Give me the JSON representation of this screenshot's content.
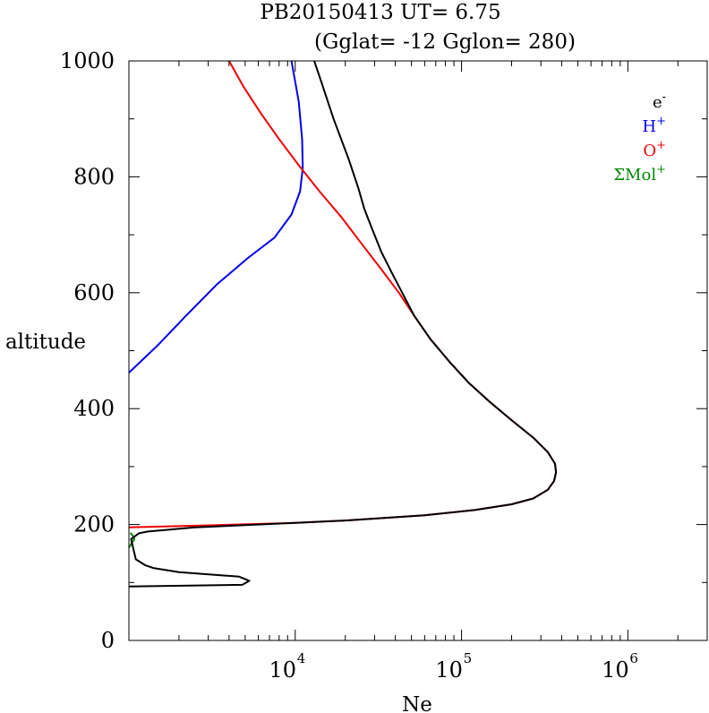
{
  "chart_data": {
    "type": "line",
    "title": "PB20150413   UT=  6.75",
    "subtitle": "(Gglat= -12   Gglon=  280)",
    "xlabel": "Ne",
    "ylabel": "altitude",
    "xscale": "log",
    "xlim": [
      1000,
      3000000
    ],
    "ylim": [
      0,
      1000
    ],
    "grid": false,
    "legend_position": "top-right",
    "x_tick_labels": [
      {
        "base": "10",
        "exp": "4",
        "value": 10000
      },
      {
        "base": "10",
        "exp": "5",
        "value": 100000
      },
      {
        "base": "10",
        "exp": "6",
        "value": 1000000
      }
    ],
    "y_tick_labels": [
      "0",
      "200",
      "400",
      "600",
      "800",
      "1000"
    ],
    "series": [
      {
        "name": "e",
        "name_sup": "-",
        "color": "#000000",
        "x": [
          1000,
          4800,
          5300,
          4600,
          2000,
          1400,
          1250,
          1100,
          1030,
          1150,
          1300,
          2500,
          10000,
          20000,
          60000,
          120000,
          200000,
          270000,
          330000,
          360000,
          370000,
          365000,
          330000,
          270000,
          200000,
          150000,
          110000,
          85000,
          65000,
          52000,
          44000,
          38000,
          33000,
          29000,
          26000,
          24000,
          21000,
          17000,
          14500,
          13000
        ],
        "y": [
          93,
          96,
          103,
          110,
          118,
          125,
          130,
          140,
          175,
          185,
          188,
          195,
          203,
          207,
          216,
          225,
          235,
          245,
          260,
          275,
          290,
          305,
          325,
          350,
          380,
          410,
          445,
          480,
          520,
          560,
          600,
          635,
          670,
          710,
          745,
          780,
          830,
          900,
          960,
          1000
        ]
      },
      {
        "name": "H",
        "name_sup": "+",
        "color": "#0000ee",
        "x": [
          1000,
          1500,
          2200,
          3400,
          5200,
          7500,
          9500,
          10700,
          11100,
          11000,
          10500,
          9500
        ],
        "y": [
          462,
          510,
          560,
          615,
          660,
          695,
          735,
          775,
          815,
          865,
          930,
          1000
        ]
      },
      {
        "name": "O",
        "name_sup": "+",
        "color": "#ee0000",
        "x": [
          1000,
          2500,
          10000,
          20000,
          60000,
          120000,
          200000,
          270000,
          330000,
          360000,
          370000,
          365000,
          330000,
          270000,
          200000,
          150000,
          110000,
          85000,
          65000,
          52000,
          42000,
          33000,
          25000,
          19000,
          14000,
          10500,
          8000,
          6200,
          4900,
          4000
        ],
        "y": [
          195,
          198,
          203,
          207,
          216,
          225,
          235,
          245,
          260,
          275,
          290,
          305,
          325,
          350,
          380,
          410,
          445,
          480,
          520,
          560,
          600,
          640,
          685,
          730,
          775,
          820,
          865,
          910,
          955,
          1000
        ]
      },
      {
        "name": "ΣMol",
        "name_sup": "+",
        "color": "#008800",
        "x": [
          1000,
          1040,
          1080,
          1060,
          1020
        ],
        "y": [
          160,
          168,
          175,
          180,
          186
        ]
      }
    ]
  }
}
